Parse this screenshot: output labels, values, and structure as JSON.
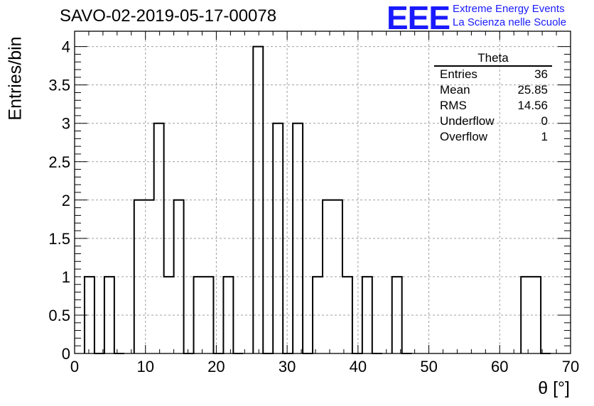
{
  "header": {
    "title": "SAVO-02-2019-05-17-00078",
    "logo_text": "EEE",
    "logo_line1": "Extreme Energy Events",
    "logo_line2": "La Scienza nelle Scuole"
  },
  "stats_box": {
    "name": "Theta",
    "rows": [
      {
        "label": "Entries",
        "value": "36"
      },
      {
        "label": "Mean",
        "value": "25.85"
      },
      {
        "label": "RMS",
        "value": "14.56"
      },
      {
        "label": "Underflow",
        "value": "0"
      },
      {
        "label": "Overflow",
        "value": "1"
      }
    ]
  },
  "colors": {
    "line": "#000000",
    "grid": "#a0a0a0",
    "logo": "#1a1aff"
  },
  "chart_data": {
    "type": "histogram",
    "xlabel": "θ [°]",
    "ylabel": "Entries/bin",
    "xlim": [
      0,
      70
    ],
    "ylim": [
      0,
      4.2
    ],
    "bin_width": 1.4,
    "x_ticks": [
      "0",
      "10",
      "20",
      "30",
      "40",
      "50",
      "60",
      "70"
    ],
    "y_ticks": [
      "0",
      "0.5",
      "1",
      "1.5",
      "2",
      "2.5",
      "3",
      "3.5",
      "4"
    ],
    "grid": true,
    "bins": [
      {
        "start": 1.4,
        "value": 1
      },
      {
        "start": 2.8,
        "value": 0
      },
      {
        "start": 4.2,
        "value": 1
      },
      {
        "start": 5.6,
        "value": 0
      },
      {
        "start": 8.4,
        "value": 2
      },
      {
        "start": 9.8,
        "value": 2
      },
      {
        "start": 11.2,
        "value": 3
      },
      {
        "start": 12.6,
        "value": 1
      },
      {
        "start": 14.0,
        "value": 2
      },
      {
        "start": 15.4,
        "value": 0
      },
      {
        "start": 16.8,
        "value": 1
      },
      {
        "start": 18.2,
        "value": 1
      },
      {
        "start": 19.6,
        "value": 0
      },
      {
        "start": 21.0,
        "value": 1
      },
      {
        "start": 22.4,
        "value": 0
      },
      {
        "start": 25.2,
        "value": 4
      },
      {
        "start": 26.6,
        "value": 0
      },
      {
        "start": 28.0,
        "value": 3
      },
      {
        "start": 29.4,
        "value": 0
      },
      {
        "start": 30.8,
        "value": 3
      },
      {
        "start": 32.2,
        "value": 0
      },
      {
        "start": 33.6,
        "value": 1
      },
      {
        "start": 35.0,
        "value": 2
      },
      {
        "start": 36.4,
        "value": 2
      },
      {
        "start": 37.8,
        "value": 1
      },
      {
        "start": 39.2,
        "value": 0
      },
      {
        "start": 40.6,
        "value": 1
      },
      {
        "start": 42.0,
        "value": 0
      },
      {
        "start": 44.8,
        "value": 1
      },
      {
        "start": 46.2,
        "value": 0
      },
      {
        "start": 63.0,
        "value": 1
      },
      {
        "start": 64.4,
        "value": 1
      },
      {
        "start": 65.8,
        "value": 0
      }
    ]
  }
}
